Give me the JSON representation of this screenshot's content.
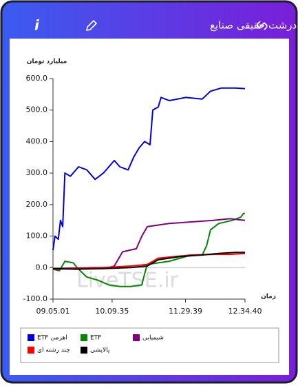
{
  "header": {
    "title": "پول درشت حقیقی صنایع"
  },
  "chart_data": {
    "type": "line",
    "y_label": "میلیارد تومان",
    "x_label": "زمان",
    "watermark": "LiveTSE.ir",
    "ylim": [
      -100,
      600
    ],
    "yticks": [
      {
        "value": -100,
        "label": "-100.0"
      },
      {
        "value": 0,
        "label": "0.0"
      },
      {
        "value": 100,
        "label": "100.0"
      },
      {
        "value": 200,
        "label": "200.0"
      },
      {
        "value": 300,
        "label": "300.0"
      },
      {
        "value": 400,
        "label": "400.0"
      },
      {
        "value": 500,
        "label": "500.0"
      },
      {
        "value": 600,
        "label": "600.0"
      }
    ],
    "xlim": [
      9.0836,
      12.5778
    ],
    "xticks": [
      {
        "value": 9.0836,
        "label": "09.05.01"
      },
      {
        "value": 10.1597,
        "label": "10.09.35"
      },
      {
        "value": 11.4942,
        "label": "11.29.39"
      },
      {
        "value": 12.5778,
        "label": "12.34.40"
      }
    ],
    "series": [
      {
        "name": "ETF اهرمی",
        "color": "#0000dd",
        "x": [
          9.0836,
          9.12,
          9.18,
          9.22,
          9.26,
          9.3,
          9.4,
          9.55,
          9.7,
          9.85,
          10.0,
          10.1,
          10.2,
          10.3,
          10.45,
          10.55,
          10.65,
          10.75,
          10.85,
          10.9,
          11.0,
          11.05,
          11.2,
          11.5,
          11.8,
          11.95,
          12.15,
          12.4,
          12.5778
        ],
        "values": [
          55,
          100,
          90,
          150,
          130,
          300,
          290,
          320,
          310,
          280,
          300,
          320,
          340,
          320,
          310,
          350,
          380,
          400,
          390,
          500,
          510,
          540,
          530,
          540,
          535,
          560,
          570,
          570,
          568
        ]
      },
      {
        "name": "ETF",
        "color": "#008800",
        "x": [
          9.0836,
          9.2,
          9.3,
          9.45,
          9.55,
          9.7,
          9.9,
          10.1,
          10.3,
          10.5,
          10.7,
          10.75,
          10.8,
          11.0,
          11.2,
          11.4,
          11.6,
          11.8,
          11.88,
          11.95,
          12.1,
          12.35,
          12.5,
          12.55,
          12.5778
        ],
        "values": [
          -5,
          -10,
          20,
          15,
          -5,
          -30,
          -40,
          -55,
          -60,
          -60,
          -55,
          -20,
          10,
          15,
          20,
          30,
          40,
          40,
          70,
          120,
          140,
          150,
          160,
          172,
          172
        ]
      },
      {
        "name": "شیمیایی",
        "color": "#800080",
        "x": [
          9.0836,
          9.8,
          10.1,
          10.2,
          10.35,
          10.6,
          10.7,
          10.8,
          11.2,
          11.6,
          12.0,
          12.3,
          12.5778
        ],
        "values": [
          -3,
          0,
          0,
          5,
          50,
          60,
          100,
          130,
          140,
          145,
          150,
          155,
          150
        ]
      },
      {
        "name": "چند رشته ای",
        "color": "#ff0000",
        "x": [
          9.0836,
          9.5,
          10.0,
          10.5,
          10.8,
          11.0,
          11.3,
          11.6,
          12.0,
          12.3,
          12.5778
        ],
        "values": [
          -5,
          -3,
          0,
          5,
          10,
          30,
          35,
          40,
          42,
          42,
          45
        ]
      },
      {
        "name": "پالایشی",
        "color": "#000000",
        "x": [
          9.0836,
          9.5,
          10.0,
          10.5,
          10.8,
          11.0,
          11.4,
          11.8,
          12.1,
          12.4,
          12.5778
        ],
        "values": [
          -3,
          -5,
          -3,
          0,
          5,
          25,
          35,
          40,
          45,
          48,
          48
        ]
      }
    ]
  }
}
